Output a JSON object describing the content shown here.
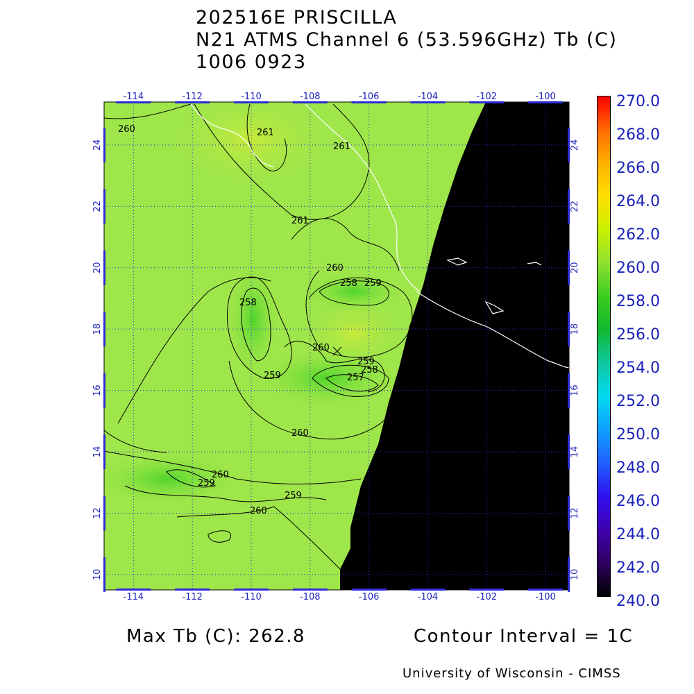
{
  "title": {
    "line1": "202516E PRISCILLA",
    "line2": "N21 ATMS Channel 6 (53.596GHz) Tb (C)",
    "line3": "1006 0923"
  },
  "map": {
    "lon_ticks": [
      "-114",
      "-112",
      "-110",
      "-108",
      "-106",
      "-104",
      "-102",
      "-100"
    ],
    "lat_ticks": [
      "10",
      "12",
      "14",
      "16",
      "18",
      "20",
      "22",
      "24"
    ],
    "lon_range": [
      -115,
      -99.2
    ],
    "lat_range": [
      9.5,
      25.4
    ],
    "background_color": "#9fe64a",
    "no_data_color": "#000000",
    "grid_color": "#2b2bd6",
    "coast_color": "#ffffff",
    "contour_color": "#000000",
    "contour_labels": [
      "260",
      "261",
      "261",
      "261",
      "260",
      "258",
      "259",
      "258",
      "260",
      "259",
      "257",
      "258",
      "259",
      "260",
      "260",
      "259",
      "259",
      "260"
    ]
  },
  "colorbar": {
    "labels": [
      "270.0",
      "268.0",
      "266.0",
      "264.0",
      "262.0",
      "260.0",
      "258.0",
      "256.0",
      "254.0",
      "252.0",
      "250.0",
      "248.0",
      "246.0",
      "244.0",
      "242.0",
      "240.0"
    ],
    "colors": [
      "#ff0000",
      "#ff6a00",
      "#ffb000",
      "#ffe000",
      "#c8f000",
      "#8fe030",
      "#3ccc20",
      "#10b830",
      "#10c8a0",
      "#00d8f0",
      "#10a0ff",
      "#2060ff",
      "#3010f0",
      "#4000b0",
      "#300060",
      "#000000"
    ]
  },
  "footer": {
    "max_tb": "Max Tb (C): 262.8",
    "contour_interval": "Contour Interval = 1C",
    "credit": "University of Wisconsin - CIMSS"
  }
}
